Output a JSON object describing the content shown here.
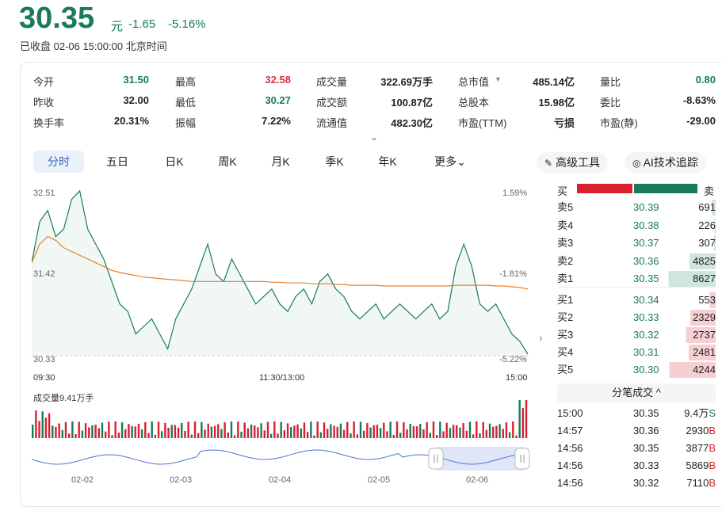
{
  "header": {
    "price": "30.35",
    "unit": "元",
    "change": "-1.65",
    "change_pct": "-5.16%",
    "status": "已收盘 02-06 15:00:00 北京时间"
  },
  "stats": {
    "c1": [
      {
        "label": "今开",
        "value": "31.50",
        "color": "green"
      },
      {
        "label": "昨收",
        "value": "32.00",
        "color": "dark"
      },
      {
        "label": "换手率",
        "value": "20.31%",
        "color": "dark"
      }
    ],
    "c2": [
      {
        "label": "最高",
        "value": "32.58",
        "color": "red"
      },
      {
        "label": "最低",
        "value": "30.27",
        "color": "green"
      },
      {
        "label": "振幅",
        "value": "7.22%",
        "color": "dark"
      }
    ],
    "c3": [
      {
        "label": "成交量",
        "value": "322.69万手",
        "color": "dark"
      },
      {
        "label": "成交额",
        "value": "100.87亿",
        "color": "dark"
      },
      {
        "label": "流通值",
        "value": "482.30亿",
        "color": "dark"
      }
    ],
    "c4": [
      {
        "label": "总市值",
        "value": "485.14亿",
        "color": "dark"
      },
      {
        "label": "总股本",
        "value": "15.98亿",
        "color": "dark"
      },
      {
        "label": "市盈(TTM)",
        "value": "亏损",
        "color": "dark"
      }
    ],
    "c5": [
      {
        "label": "量比",
        "value": "0.80",
        "color": "green"
      },
      {
        "label": "委比",
        "value": "-8.63%",
        "color": "dark"
      },
      {
        "label": "市盈(静)",
        "value": "-29.00",
        "color": "dark"
      }
    ]
  },
  "tabs": [
    "分时",
    "五日",
    "日K",
    "周K",
    "月K",
    "季K",
    "年K",
    "更多"
  ],
  "tools": {
    "advanced": "高级工具",
    "ai": "AI技术追踪"
  },
  "chart": {
    "y_labels": {
      "top": "32.51",
      "mid": "31.42",
      "bottom": "30.33"
    },
    "pct_labels": {
      "top": "1.59%",
      "mid": "-1.81%",
      "bottom": "-5.22%"
    },
    "x_labels": {
      "start": "09:30",
      "mid": "11:30/13:00",
      "end": "15:00"
    },
    "volume_label": "成交量9.41万手",
    "mini_x": [
      "02-02",
      "02-03",
      "02-04",
      "02-05",
      "02-06"
    ]
  },
  "chart_data": {
    "type": "line",
    "title": "",
    "ylim": [
      30.33,
      32.51
    ],
    "series": [
      {
        "values": [
          31.55,
          32.1,
          32.25,
          31.9,
          32.0,
          32.4,
          32.51,
          32.0,
          31.8,
          31.6,
          31.3,
          31.0,
          30.9,
          30.6,
          30.7,
          30.8,
          30.6,
          30.4,
          30.8,
          31.0,
          31.2,
          31.5,
          31.8,
          31.4,
          31.3,
          31.6,
          31.4,
          31.2,
          31.0,
          31.1,
          31.2,
          31.0,
          30.9,
          31.1,
          31.2,
          31.0,
          31.3,
          31.4,
          31.2,
          31.1,
          30.9,
          30.8,
          30.9,
          31.0,
          30.8,
          30.9,
          31.0,
          30.9,
          30.8,
          30.9,
          31.0,
          30.8,
          30.9,
          31.5,
          31.8,
          31.5,
          31.0,
          30.9,
          31.0,
          30.8,
          30.6,
          30.5,
          30.33
        ]
      },
      {
        "values": [
          31.55,
          31.8,
          31.9,
          31.85,
          31.75,
          31.7,
          31.65,
          31.6,
          31.55,
          31.5,
          31.45,
          31.42,
          31.4,
          31.38,
          31.36,
          31.35,
          31.34,
          31.33,
          31.32,
          31.31,
          31.3,
          31.3,
          31.3,
          31.3,
          31.3,
          31.3,
          31.3,
          31.3,
          31.3,
          31.3,
          31.29,
          31.29,
          31.28,
          31.28,
          31.28,
          31.27,
          31.27,
          31.27,
          31.26,
          31.26,
          31.25,
          31.25,
          31.25,
          31.25,
          31.24,
          31.24,
          31.24,
          31.24,
          31.24,
          31.24,
          31.24,
          31.24,
          31.24,
          31.25,
          31.25,
          31.25,
          31.25,
          31.25,
          31.24,
          31.24,
          31.23,
          31.22,
          31.2
        ]
      }
    ]
  },
  "orderbook": {
    "buy_label": "买",
    "sell_label": "卖",
    "asks": [
      {
        "label": "卖5",
        "price": "30.39",
        "vol": "691"
      },
      {
        "label": "卖4",
        "price": "30.38",
        "vol": "226"
      },
      {
        "label": "卖3",
        "price": "30.37",
        "vol": "307"
      },
      {
        "label": "卖2",
        "price": "30.36",
        "vol": "4825"
      },
      {
        "label": "卖1",
        "price": "30.35",
        "vol": "8627"
      }
    ],
    "bids": [
      {
        "label": "买1",
        "price": "30.34",
        "vol": "553"
      },
      {
        "label": "买2",
        "price": "30.33",
        "vol": "2329"
      },
      {
        "label": "买3",
        "price": "30.32",
        "vol": "2737"
      },
      {
        "label": "买4",
        "price": "30.31",
        "vol": "2481"
      },
      {
        "label": "买5",
        "price": "30.30",
        "vol": "4244"
      }
    ]
  },
  "trades_title": "分笔成交",
  "trades": [
    {
      "time": "15:00",
      "price": "30.35",
      "vol": "9.4万",
      "side": "S"
    },
    {
      "time": "14:57",
      "price": "30.36",
      "vol": "2930",
      "side": "B"
    },
    {
      "time": "14:56",
      "price": "30.35",
      "vol": "3877",
      "side": "B"
    },
    {
      "time": "14:56",
      "price": "30.33",
      "vol": "5869",
      "side": "B"
    },
    {
      "time": "14:56",
      "price": "30.32",
      "vol": "7110",
      "side": "B"
    }
  ]
}
